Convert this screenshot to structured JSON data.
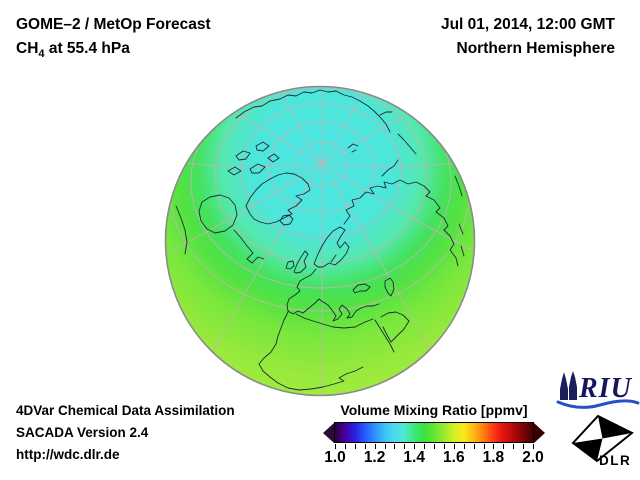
{
  "header": {
    "product": "GOME–2 / MetOp Forecast",
    "species_prefix": "CH",
    "species_subscript": "4",
    "species_suffix": " at 55.4 hPa",
    "datetime": "Jul 01, 2014, 12:00 GMT",
    "region": "Northern Hemisphere"
  },
  "globe": {
    "projection": "orthographic, centered near North Pole",
    "field": "CH4 volume mixing ratio at 55.4 hPa",
    "pole_color": "#4ce6e2",
    "midlat_color": "#3fe24a",
    "lowlat_color": "#a0ec3e",
    "coastline_color": "#1b2a3a",
    "graticule_color": "#c6b2b2",
    "rim_color": "#8a8a8a",
    "approx_values_ppmv": {
      "polar": 1.35,
      "mid_latitudes": 1.45,
      "subtropics": 1.55
    }
  },
  "colorbar": {
    "title": "Volume Mixing Ratio [ppmv]",
    "min": 1.0,
    "max": 2.0,
    "tick_labels": [
      "1.0",
      "1.2",
      "1.4",
      "1.6",
      "1.8",
      "2.0"
    ],
    "gradient_stops": [
      "#2e0038",
      "#4400a0",
      "#2a20e0",
      "#2458ff",
      "#2e90ff",
      "#3cc0f8",
      "#4adcec",
      "#52e8d0",
      "#3ce87c",
      "#38e23c",
      "#66e634",
      "#96ea30",
      "#d2f026",
      "#fce81c",
      "#ffb814",
      "#ff7e10",
      "#ff3810",
      "#e41212",
      "#b40a0a",
      "#7c0404",
      "#440000"
    ]
  },
  "footer": {
    "line1": "4DVar Chemical Data Assimilation",
    "line2": "SACADA Version 2.4",
    "line3": "http://wdc.dlr.de"
  },
  "logos": {
    "riu_text": "RIU",
    "dlr_text": "DLR"
  }
}
